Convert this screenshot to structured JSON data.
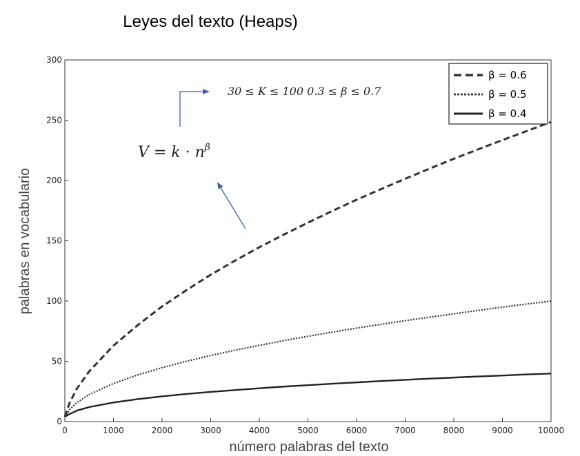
{
  "slide": {
    "title": "Leyes del texto (Heaps)"
  },
  "annotations": {
    "formula_main": "V = k · n",
    "formula_exp": "β",
    "constraint": "30 ≤ K ≤ 100 0.3 ≤ β ≤ 0.7"
  },
  "chart_data": {
    "type": "line",
    "title": "",
    "xlabel": "número palabras del texto",
    "ylabel": "palabras en vocabulario",
    "xlim": [
      0,
      10000
    ],
    "ylim": [
      0,
      300
    ],
    "xticks": [
      0,
      1000,
      2000,
      3000,
      4000,
      5000,
      6000,
      7000,
      8000,
      9000,
      10000
    ],
    "yticks": [
      0,
      50,
      100,
      150,
      200,
      250,
      300
    ],
    "x": [
      0,
      100,
      250,
      500,
      1000,
      1500,
      2000,
      2500,
      3000,
      3500,
      4000,
      4500,
      5000,
      5500,
      6000,
      6500,
      7000,
      7500,
      8000,
      8500,
      9000,
      9500,
      10000
    ],
    "series": [
      {
        "name": "β = 0.6",
        "style": "dashed",
        "color": "#333333",
        "values": [
          4,
          15.8,
          27.4,
          41.6,
          63,
          80,
          95.5,
          109,
          121.8,
          133.5,
          144.6,
          155,
          165,
          174.7,
          184,
          192.8,
          201.4,
          209.8,
          218,
          225.8,
          233.5,
          241,
          248.5
        ]
      },
      {
        "name": "β = 0.5",
        "style": "dotted",
        "color": "#333333",
        "values": [
          4,
          10,
          15.8,
          22.4,
          31.6,
          38.7,
          44.7,
          50,
          54.8,
          59.2,
          63.2,
          67.1,
          70.7,
          74.2,
          77.5,
          80.6,
          83.7,
          86.6,
          89.4,
          92.2,
          94.9,
          97.5,
          100
        ]
      },
      {
        "name": "β = 0.4",
        "style": "solid",
        "color": "#222222",
        "values": [
          4,
          6.3,
          9.1,
          12,
          15.8,
          18.6,
          20.9,
          22.9,
          24.6,
          26.1,
          27.6,
          29,
          30.2,
          31.4,
          32.5,
          33.6,
          34.6,
          35.6,
          36.5,
          37.4,
          38.2,
          39.1,
          39.8
        ]
      }
    ],
    "legend": {
      "position": "top-right"
    },
    "grid": false
  }
}
